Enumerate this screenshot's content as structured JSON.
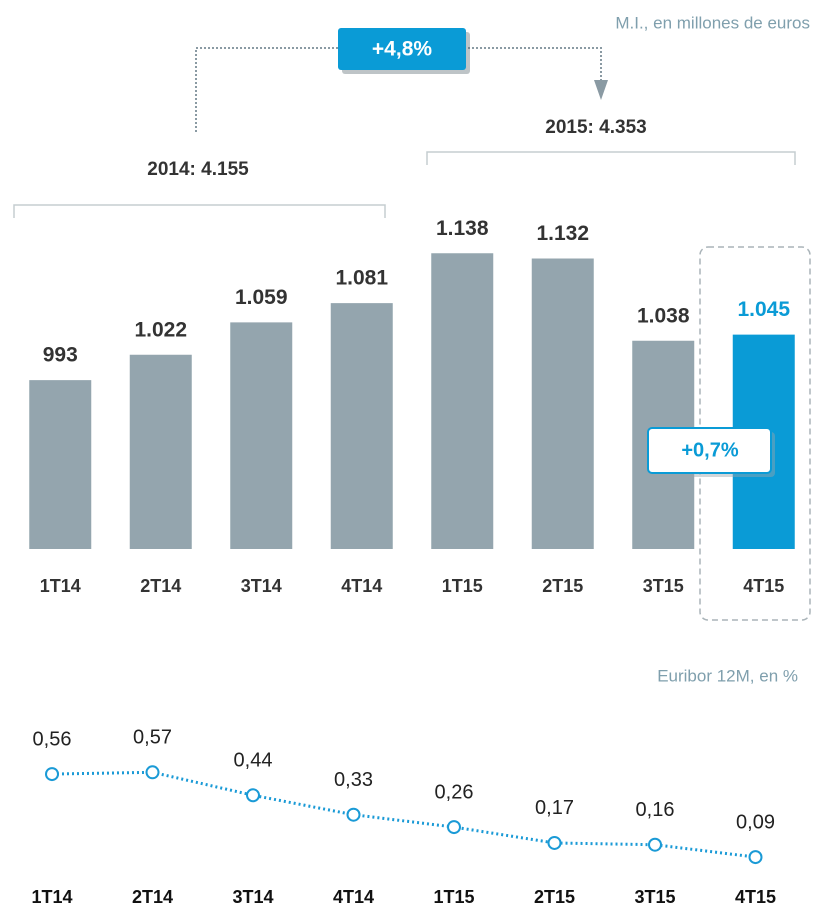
{
  "chart_data": [
    {
      "type": "bar",
      "subtitle": "M.I., en millones de euros",
      "categories": [
        "1T14",
        "2T14",
        "3T14",
        "4T14",
        "1T15",
        "2T15",
        "3T15",
        "4T15"
      ],
      "values": [
        993,
        1022,
        1059,
        1081,
        1138,
        1132,
        1038,
        1045
      ],
      "value_labels": [
        "993",
        "1.022",
        "1.059",
        "1.081",
        "1.138",
        "1.132",
        "1.038",
        "1.045"
      ],
      "colors": [
        "#94a5ae",
        "#94a5ae",
        "#94a5ae",
        "#94a5ae",
        "#94a5ae",
        "#94a5ae",
        "#94a5ae",
        "#0a9bd6"
      ],
      "ylim": [
        800,
        1200
      ],
      "annotations": [
        "+4,8%",
        "2014: 4.155",
        "2015: 4.353",
        "+0,7%"
      ]
    },
    {
      "type": "line",
      "subtitle": "Euribor 12M, en %",
      "categories": [
        "1T14",
        "2T14",
        "3T14",
        "4T14",
        "1T15",
        "2T15",
        "3T15",
        "4T15"
      ],
      "values": [
        0.56,
        0.57,
        0.44,
        0.33,
        0.26,
        0.17,
        0.16,
        0.09
      ],
      "value_labels": [
        "0,56",
        "0,57",
        "0,44",
        "0,33",
        "0,26",
        "0,17",
        "0,16",
        "0,09"
      ],
      "color": "#1a9ad6",
      "ylim": [
        0,
        0.6
      ]
    }
  ]
}
